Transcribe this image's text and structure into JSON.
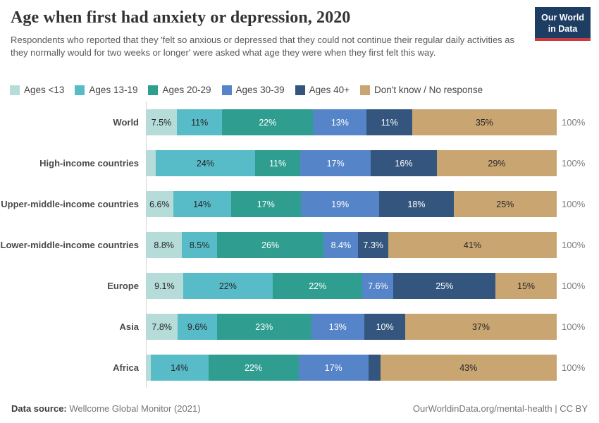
{
  "header": {
    "title": "Age when first had anxiety or depression, 2020",
    "subtitle": "Respondents who reported that they 'felt so anxious or depressed that they could not continue their regular daily activities as they normally would for two weeks or longer' were asked what age they were when they first felt this way.",
    "logo_line1": "Our World",
    "logo_line2": "in Data"
  },
  "colors": {
    "logo_background": "#1d3d63",
    "logo_underline": "#cb3c41",
    "axis_line": "#d6d6d6",
    "segment_label_dark": "#262626",
    "segment_label_light": "#ffffff"
  },
  "chart_data": {
    "type": "bar",
    "variant": "stacked-horizontal",
    "unit": "%",
    "xlim": [
      0,
      100
    ],
    "grid": false,
    "legend_position": "top",
    "series": [
      "Ages <13",
      "Ages 13-19",
      "Ages 20-29",
      "Ages 30-39",
      "Ages 40+",
      "Don't know / No response"
    ],
    "series_colors": [
      "#b5dcd9",
      "#58bbc8",
      "#2f9e90",
      "#5684c8",
      "#34567e",
      "#c9a572"
    ],
    "series_label_styles": [
      "dark",
      "dark",
      "light",
      "light",
      "light",
      "dark"
    ],
    "categories": [
      "World",
      "High-income countries",
      "Upper-middle-income countries",
      "Lower-middle-income countries",
      "Europe",
      "Asia",
      "Africa"
    ],
    "rows": [
      {
        "category": "World",
        "values": [
          7.5,
          11,
          22,
          13,
          11,
          35
        ],
        "labels": [
          "7.5%",
          "11%",
          "22%",
          "13%",
          "11%",
          "35%"
        ],
        "total_label": "100%"
      },
      {
        "category": "High-income countries",
        "values": [
          2.4,
          24,
          11,
          17,
          16,
          29
        ],
        "labels": [
          "",
          "24%",
          "11%",
          "17%",
          "16%",
          "29%"
        ],
        "total_label": "100%"
      },
      {
        "category": "Upper-middle-income countries",
        "values": [
          6.6,
          14,
          17,
          19,
          18,
          25
        ],
        "labels": [
          "6.6%",
          "14%",
          "17%",
          "19%",
          "18%",
          "25%"
        ],
        "total_label": "100%"
      },
      {
        "category": "Lower-middle-income countries",
        "values": [
          8.8,
          8.5,
          26,
          8.4,
          7.3,
          41
        ],
        "labels": [
          "8.8%",
          "8.5%",
          "26%",
          "8.4%",
          "7.3%",
          "41%"
        ],
        "total_label": "100%"
      },
      {
        "category": "Europe",
        "values": [
          9.1,
          22,
          22,
          7.6,
          25,
          15
        ],
        "labels": [
          "9.1%",
          "22%",
          "22%",
          "7.6%",
          "25%",
          "15%"
        ],
        "total_label": "100%"
      },
      {
        "category": "Asia",
        "values": [
          7.8,
          9.6,
          23,
          13,
          10,
          37
        ],
        "labels": [
          "7.8%",
          "9.6%",
          "23%",
          "13%",
          "10%",
          "37%"
        ],
        "total_label": "100%"
      },
      {
        "category": "Africa",
        "values": [
          1.2,
          14,
          22,
          17,
          2.9,
          43
        ],
        "labels": [
          "",
          "14%",
          "22%",
          "17%",
          "",
          "43%"
        ],
        "total_label": "100%"
      }
    ]
  },
  "footer": {
    "source_label": "Data source:",
    "source_value": "Wellcome Global Monitor (2021)",
    "right_link": "OurWorldinData.org/mental-health",
    "right_license": "CC BY",
    "right_separator": " | "
  }
}
